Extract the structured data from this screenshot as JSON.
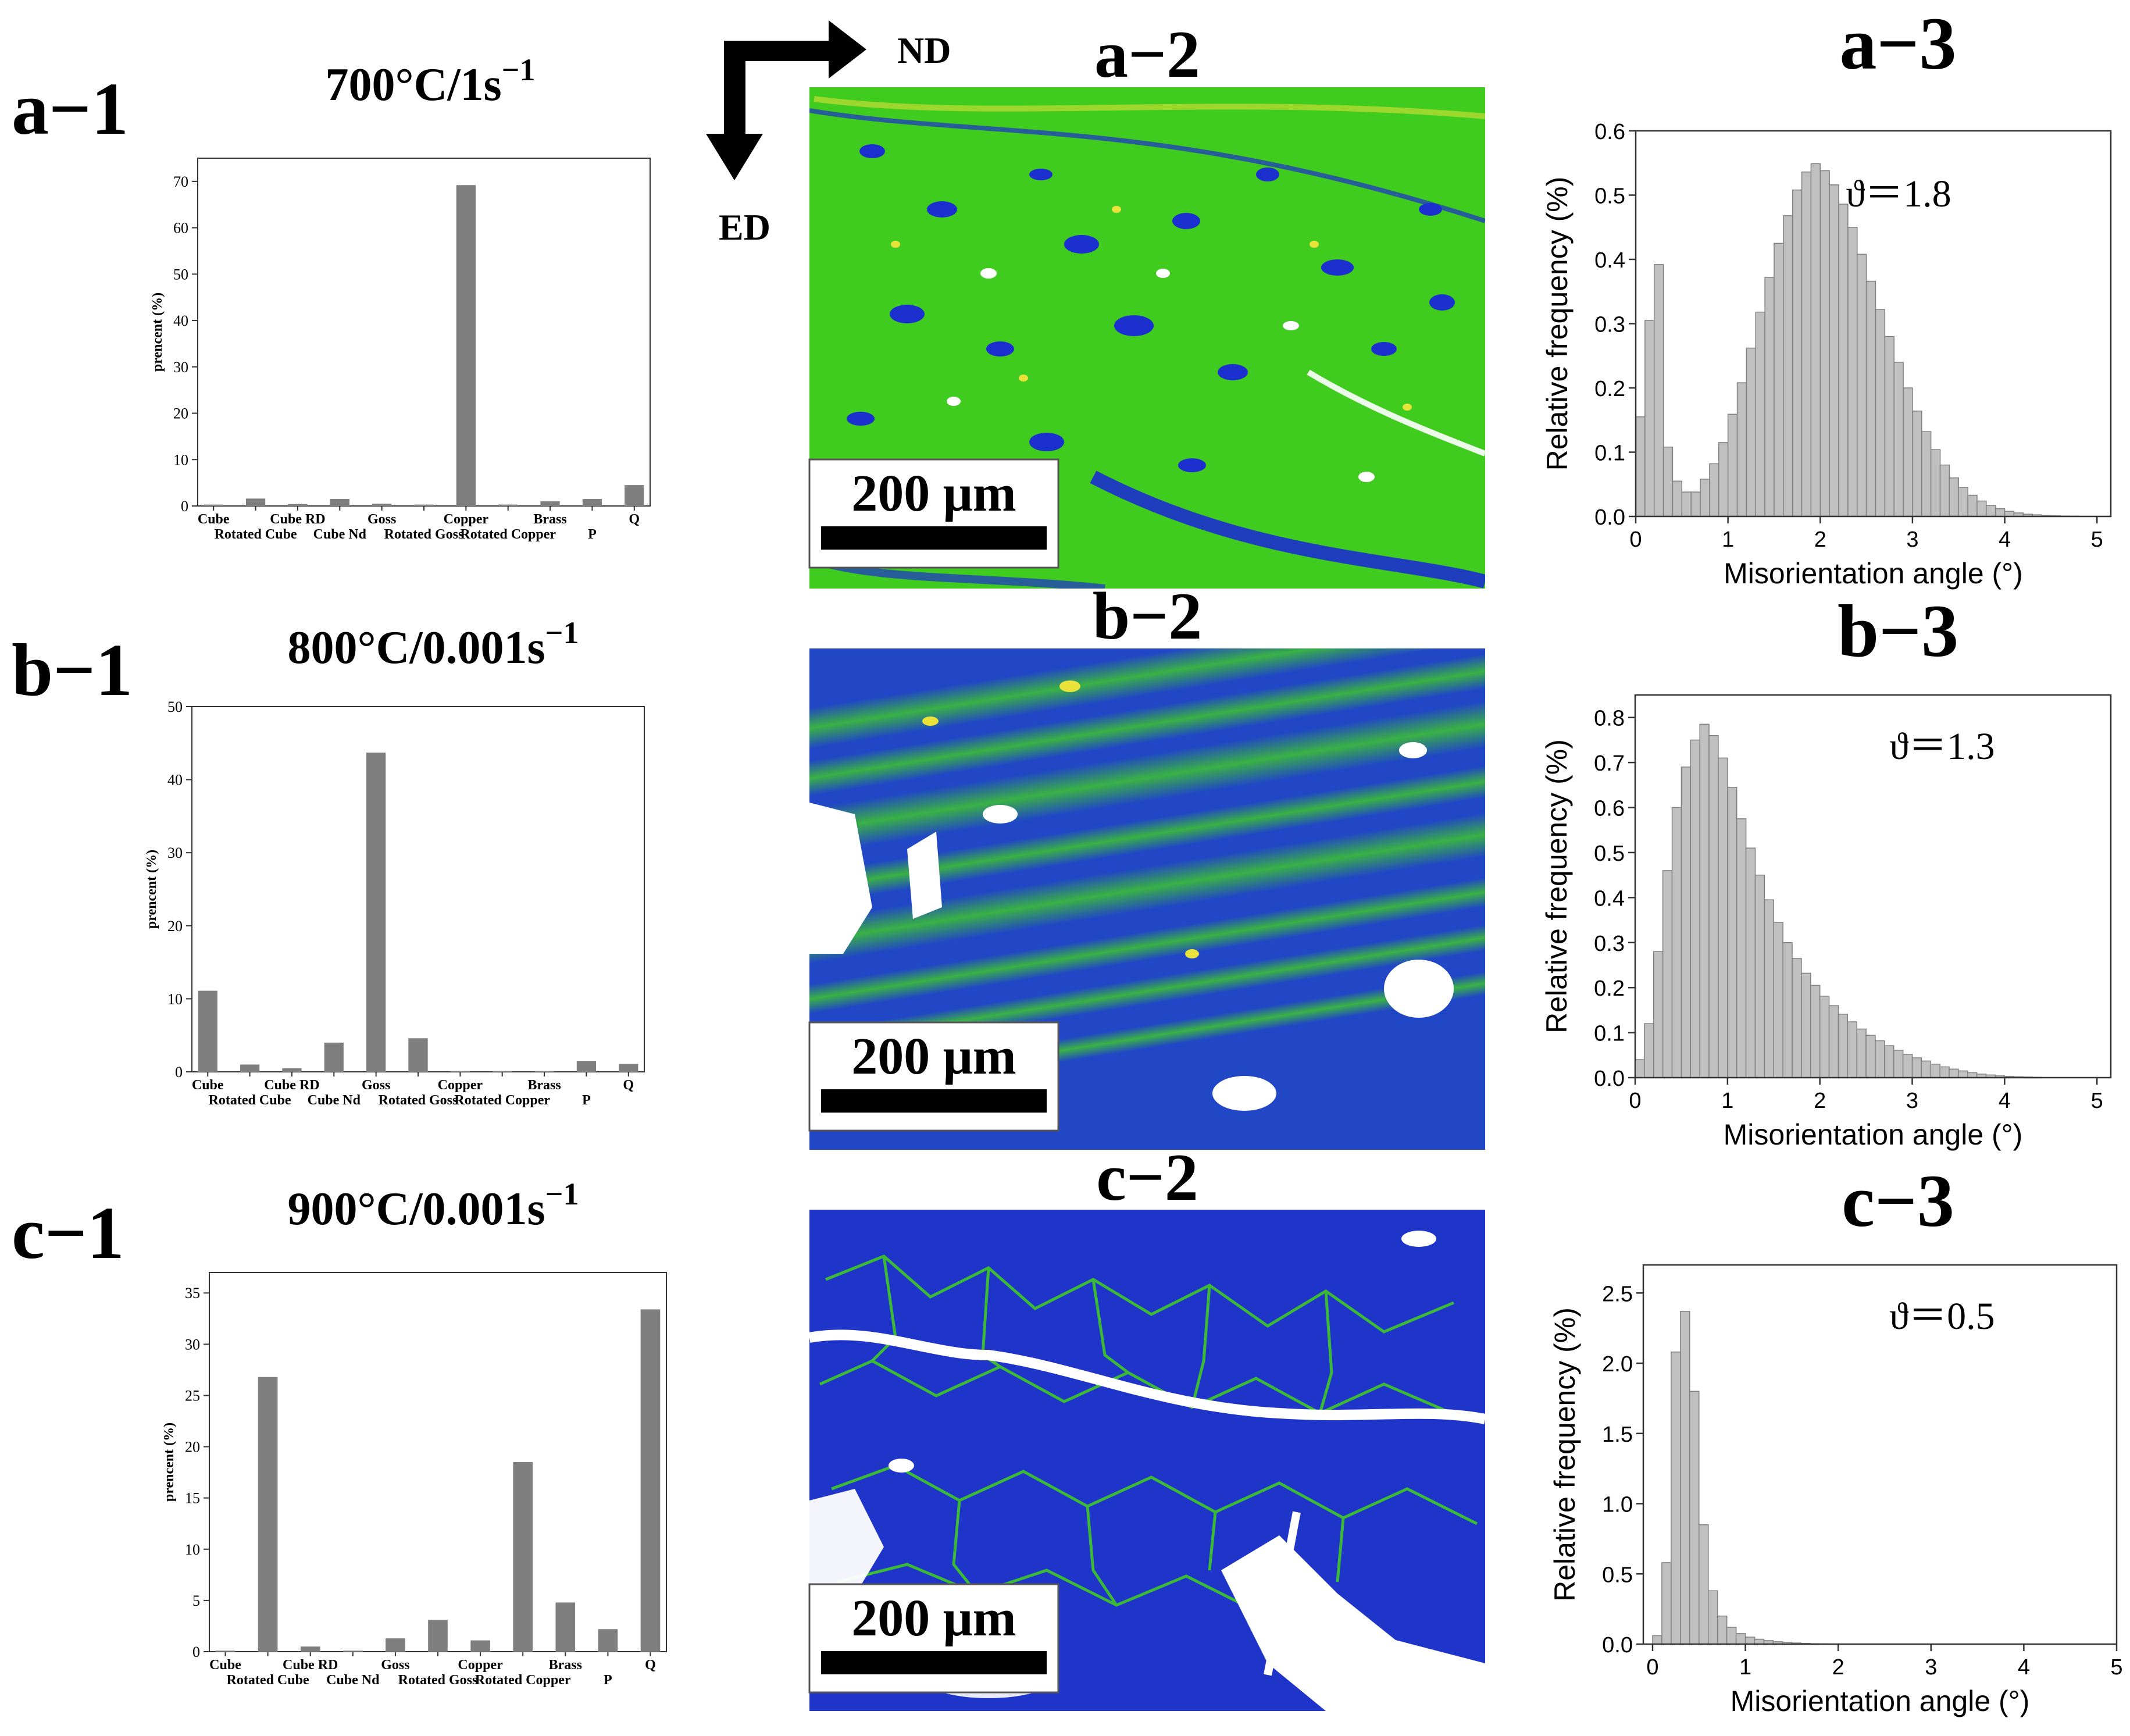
{
  "colors": {
    "bar_dark": "#7f7f7f",
    "bar_light": "#c0c0c0",
    "map_green": "#42d21e",
    "map_blue": "#1c2fcf",
    "map_yellow": "#e8e23a",
    "map_white": "#ffffff",
    "text": "#000000"
  },
  "axes_arrows": {
    "nd_label": "ND",
    "ed_label": "ED"
  },
  "maps": [
    {
      "label": "a−2",
      "scale_bar": "200 μm",
      "palette": "green"
    },
    {
      "label": "b−2",
      "scale_bar": "200 μm",
      "palette": "mixed"
    },
    {
      "label": "c−2",
      "scale_bar": "200 μm",
      "palette": "blue"
    }
  ],
  "chart_data": [
    {
      "id": "a-1",
      "panel_label": "a−1",
      "title": "700°C/1s",
      "title_sup": "−1",
      "type": "bar",
      "xlabel": "",
      "ylabel": "prencent (%)",
      "ylim": [
        0,
        75
      ],
      "yticks": [
        0,
        10,
        20,
        30,
        40,
        50,
        60,
        70
      ],
      "categories": [
        "Cube",
        "Rotated Cube",
        "Cube RD",
        "Cube Nd",
        "Goss",
        "Rotated Goss",
        "Copper",
        "Rotated Copper",
        "Brass",
        "P",
        "Q"
      ],
      "values": [
        0.3,
        1.6,
        0.4,
        1.5,
        0.5,
        0.3,
        69.2,
        0.3,
        1.0,
        1.5,
        4.5
      ]
    },
    {
      "id": "b-1",
      "panel_label": "b−1",
      "title": "800°C/0.001s",
      "title_sup": "−1",
      "type": "bar",
      "xlabel": "",
      "ylabel": "prencent (%)",
      "ylim": [
        0,
        50
      ],
      "yticks": [
        0,
        10,
        20,
        30,
        40,
        50
      ],
      "categories": [
        "Cube",
        "Rotated Cube",
        "Cube RD",
        "Cube Nd",
        "Goss",
        "Rotated Goss",
        "Copper",
        "Rotated Copper",
        "Brass",
        "P",
        "Q"
      ],
      "values": [
        11.1,
        1.0,
        0.5,
        4.0,
        43.7,
        4.6,
        0.1,
        0.1,
        0.1,
        1.5,
        1.1
      ]
    },
    {
      "id": "c-1",
      "panel_label": "c−1",
      "title": "900°C/0.001s",
      "title_sup": "−1",
      "type": "bar",
      "xlabel": "",
      "ylabel": "prencent (%)",
      "ylim": [
        0,
        37
      ],
      "yticks": [
        0,
        5,
        10,
        15,
        20,
        25,
        30,
        35
      ],
      "categories": [
        "Cube",
        "Rotated Cube",
        "Cube RD",
        "Cube Nd",
        "Goss",
        "Rotated Goss",
        "Copper",
        "Rotated Copper",
        "Brass",
        "P",
        "Q"
      ],
      "values": [
        0.1,
        26.8,
        0.5,
        0.1,
        1.3,
        3.1,
        1.1,
        18.5,
        4.8,
        2.2,
        33.4
      ]
    },
    {
      "id": "a-3",
      "panel_label": "a−3",
      "type": "histogram",
      "xlabel": "Misorientation angle (°)",
      "ylabel": "Relative frequency (%)",
      "annotation": "ϑ＝1.8",
      "xlim": [
        0,
        5.15
      ],
      "ylim": [
        0,
        0.6
      ],
      "xticks": [
        0,
        1,
        2,
        3,
        4,
        5
      ],
      "yticks": [
        0.0,
        0.1,
        0.2,
        0.3,
        0.4,
        0.5,
        0.6
      ],
      "bin_width": 0.1,
      "values": [
        0.155,
        0.305,
        0.392,
        0.108,
        0.055,
        0.038,
        0.038,
        0.058,
        0.082,
        0.115,
        0.159,
        0.208,
        0.262,
        0.318,
        0.372,
        0.425,
        0.468,
        0.508,
        0.536,
        0.549,
        0.538,
        0.516,
        0.486,
        0.45,
        0.408,
        0.366,
        0.322,
        0.28,
        0.24,
        0.2,
        0.164,
        0.132,
        0.104,
        0.08,
        0.06,
        0.045,
        0.033,
        0.024,
        0.017,
        0.012,
        0.008,
        0.0055,
        0.0035,
        0.0025,
        0.0015,
        0.001,
        0.0007,
        0.0005
      ]
    },
    {
      "id": "b-3",
      "panel_label": "b−3",
      "type": "histogram",
      "xlabel": "Misorientation angle (°)",
      "ylabel": "Relative frequency (%)",
      "annotation": "ϑ＝1.3",
      "xlim": [
        0,
        5.15
      ],
      "ylim": [
        0,
        0.85
      ],
      "xticks": [
        0,
        1,
        2,
        3,
        4,
        5
      ],
      "yticks": [
        0.0,
        0.1,
        0.2,
        0.3,
        0.4,
        0.5,
        0.6,
        0.7,
        0.8
      ],
      "bin_width": 0.1,
      "values": [
        0.04,
        0.12,
        0.28,
        0.46,
        0.6,
        0.69,
        0.75,
        0.785,
        0.76,
        0.71,
        0.645,
        0.575,
        0.51,
        0.45,
        0.395,
        0.345,
        0.3,
        0.265,
        0.232,
        0.205,
        0.181,
        0.16,
        0.141,
        0.124,
        0.108,
        0.094,
        0.082,
        0.071,
        0.061,
        0.052,
        0.044,
        0.037,
        0.03,
        0.024,
        0.019,
        0.015,
        0.011,
        0.008,
        0.006,
        0.004,
        0.003,
        0.002,
        0.0015,
        0.001
      ]
    },
    {
      "id": "c-3",
      "panel_label": "c−3",
      "type": "histogram",
      "xlabel": "Misorientation angle (°)",
      "ylabel": "Relative frequency (%)",
      "annotation": "ϑ＝0.5",
      "xlim": [
        -0.1,
        5.0
      ],
      "ylim": [
        0,
        2.7
      ],
      "xticks": [
        0,
        1,
        2,
        3,
        4,
        5
      ],
      "yticks": [
        0.0,
        0.5,
        1.0,
        1.5,
        2.0,
        2.5
      ],
      "bin_width": 0.1,
      "values": [
        0.06,
        0.58,
        2.08,
        2.37,
        1.8,
        0.85,
        0.38,
        0.2,
        0.12,
        0.075,
        0.05,
        0.035,
        0.025,
        0.017,
        0.012,
        0.008,
        0.005,
        0.003,
        0.002
      ]
    }
  ]
}
